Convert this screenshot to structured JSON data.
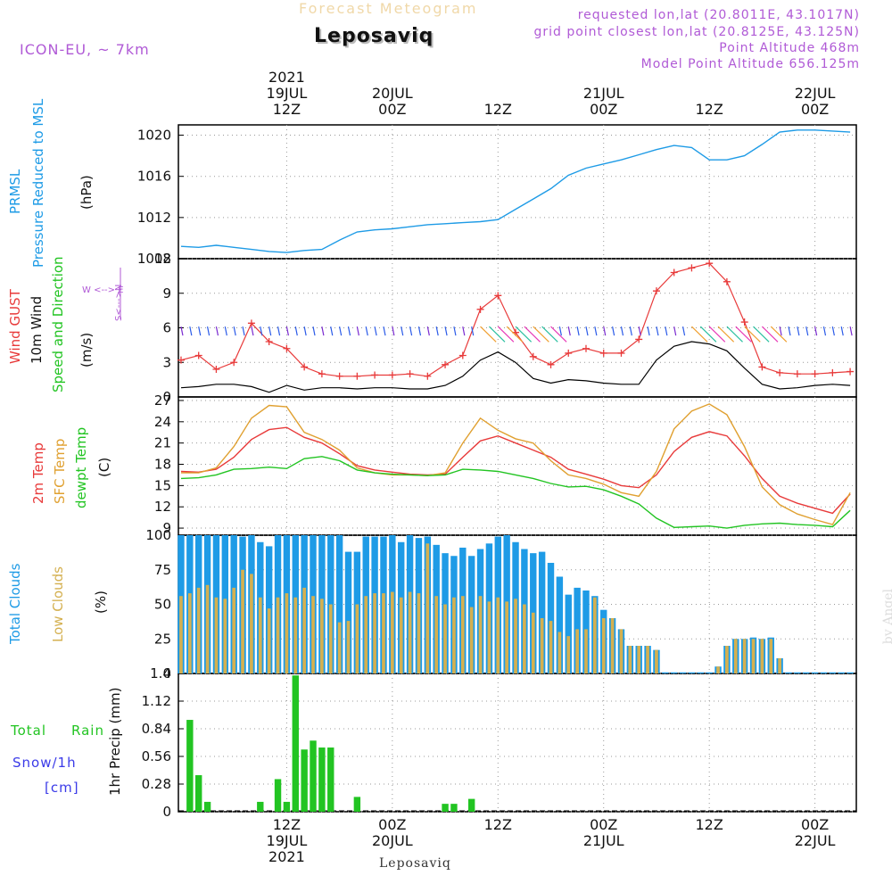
{
  "header": {
    "title": "Forecast Meteogram",
    "station": "Leposaviq",
    "model": "ICON-EU, ~ 7km",
    "requested": "requested lon,lat (20.8011E, 43.1017N)",
    "gridpoint": "grid point closest lon,lat (20.8125E, 43.125N)",
    "point_alt": "Point Altitude 468m",
    "model_alt": "Model Point Altitude 656.125m"
  },
  "footer": {
    "station": "Leposaviq",
    "credit": "by Angel"
  },
  "time_axis": {
    "top_labels": [
      {
        "h": 12,
        "lines": [
          "2021",
          "19JUL",
          "12Z"
        ]
      },
      {
        "h": 24,
        "lines": [
          "20JUL",
          "00Z"
        ]
      },
      {
        "h": 36,
        "lines": [
          "12Z"
        ]
      },
      {
        "h": 48,
        "lines": [
          "21JUL",
          "00Z"
        ]
      },
      {
        "h": 60,
        "lines": [
          "12Z"
        ]
      },
      {
        "h": 72,
        "lines": [
          "22JUL",
          "00Z"
        ]
      }
    ],
    "bottom_labels": [
      {
        "h": 12,
        "lines": [
          "12Z",
          "19JUL",
          "2021"
        ]
      },
      {
        "h": 24,
        "lines": [
          "00Z",
          "20JUL"
        ]
      },
      {
        "h": 36,
        "lines": [
          "12Z"
        ]
      },
      {
        "h": 48,
        "lines": [
          "00Z",
          "21JUL"
        ]
      },
      {
        "h": 60,
        "lines": [
          "12Z"
        ]
      },
      {
        "h": 72,
        "lines": [
          "00Z",
          "22JUL"
        ]
      }
    ]
  },
  "panel_labels": {
    "pressure": {
      "a": "PRMSL",
      "b": "Pressure Reduced to MSL",
      "unit": "(hPa)"
    },
    "wind": {
      "gust": "Wind GUST",
      "wind": "10m Wind",
      "speed": "Speed and Direction",
      "unit": "(m/s)",
      "compass_ns": "S<--->N",
      "compass_we": "W <--> E"
    },
    "temp": {
      "t2m": "2m Temp",
      "sfc": "SFC Temp",
      "dewpt": "dewpt Temp",
      "unit": "(C)"
    },
    "clouds": {
      "total": "Total Clouds",
      "low": "Low Clouds",
      "unit": "(%)"
    },
    "precip": {
      "total": "Total",
      "rain": "Rain",
      "snow": "Snow/1h",
      "cm": "[cm]",
      "axis": "1hr Precip (mm)"
    }
  },
  "colors": {
    "pressure": "#1e9be6",
    "gust": "#e83a3a",
    "wind": "#000000",
    "t2m": "#e83a3a",
    "sfc": "#e0a030",
    "dewpt": "#22c422",
    "total_cloud": "#1e9be6",
    "low_cloud": "#d4b050",
    "rain": "#22c422",
    "snow": "#3a3ae8",
    "purple": "#b05ad6"
  },
  "chart_data": [
    {
      "type": "line",
      "name": "pressure",
      "title": "PRMSL Pressure Reduced to MSL",
      "ylabel": "(hPa)",
      "ylim": [
        1008,
        1021
      ],
      "yticks": [
        1008,
        1012,
        1016,
        1020
      ],
      "x_unit": "hours from 19JUL 00Z",
      "x": [
        0,
        2,
        4,
        6,
        8,
        10,
        12,
        14,
        16,
        18,
        20,
        22,
        24,
        26,
        28,
        30,
        32,
        34,
        36,
        38,
        40,
        42,
        44,
        46,
        48,
        50,
        52,
        54,
        56,
        58,
        60,
        62,
        64,
        66,
        68,
        70,
        72,
        74,
        76
      ],
      "series": [
        {
          "name": "PRMSL",
          "values": [
            1009.2,
            1009.1,
            1009.3,
            1009.1,
            1008.9,
            1008.7,
            1008.6,
            1008.8,
            1008.9,
            1009.8,
            1010.6,
            1010.8,
            1010.9,
            1011.1,
            1011.3,
            1011.4,
            1011.5,
            1011.6,
            1011.8,
            1012.8,
            1013.8,
            1014.8,
            1016.1,
            1016.8,
            1017.2,
            1017.6,
            1018.1,
            1018.6,
            1019.0,
            1018.8,
            1017.6,
            1017.6,
            1018.0,
            1019.1,
            1020.3,
            1020.5,
            1020.5,
            1020.4,
            1020.3
          ]
        }
      ]
    },
    {
      "type": "line",
      "name": "wind",
      "title": "Wind GUST / 10m Wind Speed and Direction",
      "ylabel": "(m/s)",
      "ylim": [
        0,
        12
      ],
      "yticks": [
        0,
        3,
        6,
        9,
        12
      ],
      "x": [
        0,
        2,
        4,
        6,
        8,
        10,
        12,
        14,
        16,
        18,
        20,
        22,
        24,
        26,
        28,
        30,
        32,
        34,
        36,
        38,
        40,
        42,
        44,
        46,
        48,
        50,
        52,
        54,
        56,
        58,
        60,
        62,
        64,
        66,
        68,
        70,
        72,
        74,
        76
      ],
      "series": [
        {
          "name": "Wind GUST",
          "values": [
            3.2,
            3.6,
            2.4,
            3.0,
            6.4,
            4.8,
            4.2,
            2.6,
            2.0,
            1.8,
            1.8,
            1.9,
            1.9,
            2.0,
            1.8,
            2.8,
            3.6,
            7.6,
            8.8,
            5.6,
            3.5,
            2.8,
            3.8,
            4.2,
            3.8,
            3.8,
            5.0,
            9.2,
            10.8,
            11.2,
            11.6,
            10.0,
            6.5,
            2.6,
            2.1,
            2.0,
            2.0,
            2.1,
            2.2
          ]
        },
        {
          "name": "10m Wind",
          "values": [
            0.8,
            0.9,
            1.1,
            1.1,
            0.9,
            0.4,
            1.0,
            0.6,
            0.8,
            0.8,
            0.7,
            0.8,
            0.8,
            0.7,
            0.7,
            1.0,
            1.8,
            3.2,
            3.9,
            3.0,
            1.6,
            1.2,
            1.5,
            1.4,
            1.2,
            1.1,
            1.1,
            3.2,
            4.4,
            4.8,
            4.6,
            4.0,
            2.5,
            1.1,
            0.7,
            0.8,
            1.0,
            1.1,
            1.0
          ]
        }
      ]
    },
    {
      "type": "line",
      "name": "temperature",
      "title": "2m Temp / SFC Temp / dewpt Temp",
      "ylabel": "(C)",
      "ylim": [
        8,
        27.5
      ],
      "yticks": [
        9,
        12,
        15,
        18,
        21,
        24,
        27
      ],
      "x": [
        0,
        2,
        4,
        6,
        8,
        10,
        12,
        14,
        16,
        18,
        20,
        22,
        24,
        26,
        28,
        30,
        32,
        34,
        36,
        38,
        40,
        42,
        44,
        46,
        48,
        50,
        52,
        54,
        56,
        58,
        60,
        62,
        64,
        66,
        68,
        70,
        72,
        74,
        76
      ],
      "series": [
        {
          "name": "2m Temp",
          "values": [
            17.0,
            16.9,
            17.3,
            19.0,
            21.5,
            22.9,
            23.2,
            21.8,
            21.0,
            19.5,
            17.8,
            17.2,
            16.9,
            16.6,
            16.5,
            16.6,
            19.0,
            21.3,
            22.0,
            21.0,
            20.0,
            19.0,
            17.3,
            16.6,
            15.9,
            15.0,
            14.7,
            16.5,
            19.8,
            21.8,
            22.6,
            22.0,
            19.2,
            16.0,
            13.5,
            12.5,
            11.8,
            11.1,
            13.8
          ]
        },
        {
          "name": "SFC Temp",
          "values": [
            16.8,
            16.8,
            17.5,
            20.5,
            24.5,
            26.3,
            26.1,
            22.5,
            21.5,
            20.0,
            17.5,
            16.8,
            16.5,
            16.5,
            16.4,
            16.8,
            21.0,
            24.5,
            22.8,
            21.6,
            21.0,
            18.5,
            16.5,
            16.0,
            15.2,
            14.0,
            13.5,
            17.0,
            23.0,
            25.5,
            26.5,
            25.0,
            20.5,
            14.8,
            12.3,
            11.0,
            10.2,
            9.5,
            14.0
          ]
        },
        {
          "name": "dewpt Temp",
          "values": [
            16.0,
            16.1,
            16.5,
            17.3,
            17.4,
            17.6,
            17.4,
            18.8,
            19.1,
            18.5,
            17.2,
            16.8,
            16.6,
            16.5,
            16.4,
            16.5,
            17.3,
            17.2,
            17.0,
            16.5,
            16.0,
            15.3,
            14.8,
            14.9,
            14.4,
            13.5,
            12.4,
            10.4,
            9.1,
            9.2,
            9.3,
            9.0,
            9.4,
            9.6,
            9.7,
            9.5,
            9.4,
            9.2,
            11.5
          ]
        }
      ]
    },
    {
      "type": "bar",
      "name": "clouds",
      "title": "Total Clouds / Low Clouds",
      "ylabel": "(%)",
      "ylim": [
        0,
        100
      ],
      "yticks": [
        0,
        25,
        50,
        75,
        100
      ],
      "x": [
        0,
        1,
        2,
        3,
        4,
        5,
        6,
        7,
        8,
        9,
        10,
        11,
        12,
        13,
        14,
        15,
        16,
        17,
        18,
        19,
        20,
        21,
        22,
        23,
        24,
        25,
        26,
        27,
        28,
        29,
        30,
        31,
        32,
        33,
        34,
        35,
        36,
        37,
        38,
        39,
        40,
        41,
        42,
        43,
        44,
        45,
        46,
        47,
        48,
        49,
        50,
        51,
        52,
        53,
        54,
        55,
        56,
        57,
        58,
        59,
        60,
        61,
        62,
        63,
        64,
        65,
        66,
        67,
        68,
        69,
        70,
        71,
        72,
        73,
        74,
        75,
        76
      ],
      "series": [
        {
          "name": "Total Clouds",
          "values": [
            100,
            100,
            100,
            100,
            100,
            100,
            100,
            99,
            100,
            95,
            92,
            100,
            100,
            100,
            100,
            100,
            100,
            100,
            100,
            88,
            88,
            99,
            99,
            99,
            100,
            95,
            100,
            98,
            99,
            93,
            87,
            85,
            91,
            85,
            90,
            94,
            99,
            100,
            95,
            90,
            87,
            88,
            80,
            70,
            57,
            62,
            60,
            56,
            46,
            40,
            32,
            20,
            20,
            20,
            17,
            0,
            0,
            0,
            0,
            0,
            0,
            5,
            20,
            25,
            25,
            26,
            25,
            26,
            11,
            0,
            0,
            0,
            0,
            0,
            0,
            0,
            0
          ]
        },
        {
          "name": "Low Clouds",
          "values": [
            56,
            58,
            62,
            64,
            55,
            54,
            62,
            75,
            72,
            55,
            47,
            55,
            58,
            55,
            62,
            56,
            54,
            50,
            37,
            38,
            50,
            56,
            58,
            58,
            59,
            55,
            59,
            58,
            94,
            56,
            50,
            55,
            56,
            48,
            56,
            52,
            55,
            52,
            54,
            50,
            44,
            40,
            38,
            30,
            27,
            32,
            32,
            55,
            40,
            40,
            32,
            20,
            20,
            20,
            17,
            0,
            0,
            0,
            0,
            0,
            0,
            5,
            20,
            25,
            25,
            25,
            25,
            25,
            11,
            0,
            0,
            0,
            0,
            0,
            0,
            0,
            0
          ]
        }
      ]
    },
    {
      "type": "bar",
      "name": "precipitation",
      "title": "Total Rain / Snow/1h [cm]",
      "ylabel": "1hr Precip (mm)",
      "ylim": [
        0,
        1.4
      ],
      "yticks": [
        0,
        0.28,
        0.56,
        0.84,
        1.12,
        1.4
      ],
      "x": [
        1,
        2,
        3,
        9,
        11,
        12,
        13,
        14,
        15,
        16,
        17,
        18,
        20,
        30,
        31,
        33
      ],
      "series": [
        {
          "name": "Total Rain",
          "values": [
            0.93,
            0.37,
            0.1,
            0.1,
            0.33,
            0.1,
            1.38,
            0.63,
            0.72,
            0.65,
            0.65,
            0.0,
            0.15,
            0.08,
            0.08,
            0.13
          ]
        }
      ]
    }
  ]
}
